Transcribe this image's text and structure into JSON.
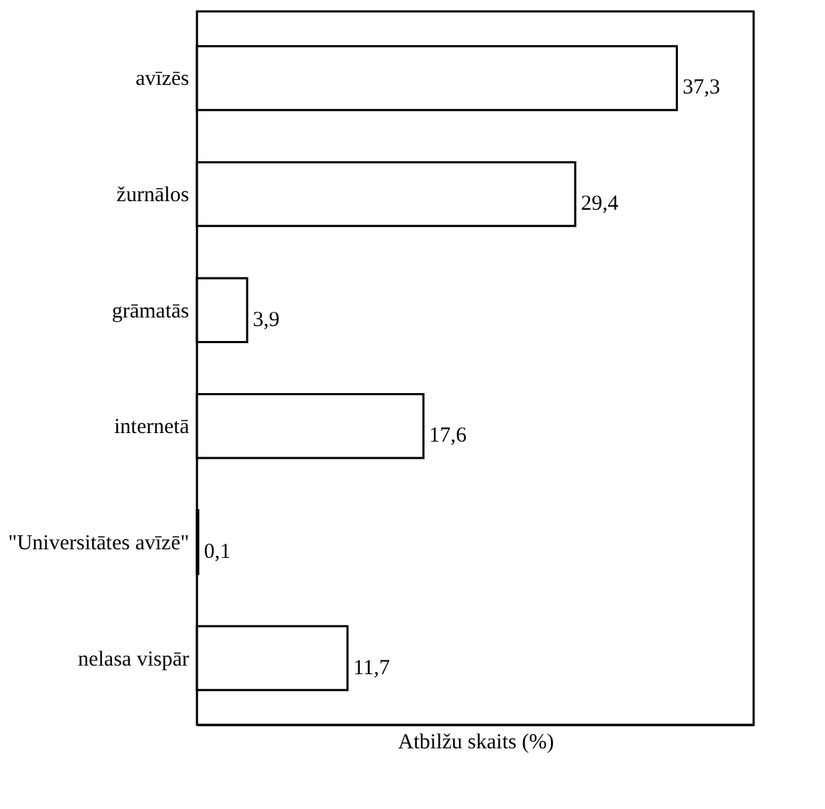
{
  "chart_data": {
    "type": "bar",
    "orientation": "horizontal",
    "categories": [
      "avīzēs",
      "žurnālos",
      "grāmatās",
      "internetā",
      "\"Universitātes avīzē\"",
      "nelasa vispār"
    ],
    "values": [
      37.3,
      29.4,
      3.9,
      17.6,
      0.1,
      11.7
    ],
    "value_labels": [
      "37,3",
      "29,4",
      "3,9",
      "17,6",
      "0,1",
      "11,7"
    ],
    "color": "#ffffff",
    "xlabel": "Atbilžu skaits (%)",
    "tick_labels": "y"
  }
}
